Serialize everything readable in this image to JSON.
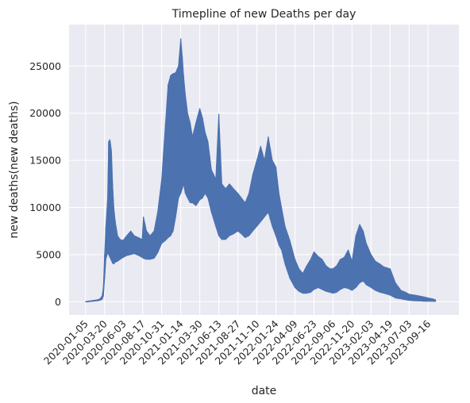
{
  "chart_data": {
    "type": "line",
    "title": "Timepline of new Deaths per day",
    "xlabel": "date",
    "ylabel": "new deaths(new deaths)",
    "x_ticks": [
      "2020-01-05",
      "2020-03-20",
      "2020-06-03",
      "2020-08-17",
      "2020-10-31",
      "2021-01-14",
      "2021-03-30",
      "2021-06-13",
      "2021-08-27",
      "2021-11-10",
      "2022-01-24",
      "2022-04-09",
      "2022-06-23",
      "2022-09-06",
      "2022-11-20",
      "2023-02-03",
      "2023-04-19",
      "2023-07-03",
      "2023-09-16"
    ],
    "y_ticks": [
      0,
      5000,
      10000,
      15000,
      20000,
      25000
    ],
    "xlim": [
      "2019-11-01",
      "2024-01-15"
    ],
    "ylim": [
      -1400,
      29400
    ],
    "grid": true,
    "background": "#eaeaf2",
    "colors": {
      "line": "#4c72b0",
      "grid": "#ffffff"
    },
    "series": [
      {
        "x": [
          "2020-01-05",
          "2020-01-20",
          "2020-02-05",
          "2020-02-20",
          "2020-03-01",
          "2020-03-10",
          "2020-03-15",
          "2020-03-20",
          "2020-03-25",
          "2020-04-01",
          "2020-04-05",
          "2020-04-10",
          "2020-04-15",
          "2020-04-20",
          "2020-04-25",
          "2020-05-01",
          "2020-05-10",
          "2020-05-20",
          "2020-06-01",
          "2020-06-15",
          "2020-07-01",
          "2020-07-15",
          "2020-08-01",
          "2020-08-15",
          "2020-08-20",
          "2020-09-01",
          "2020-09-15",
          "2020-10-01",
          "2020-10-15",
          "2020-10-31",
          "2020-11-15",
          "2020-11-25",
          "2020-12-05",
          "2020-12-15",
          "2020-12-25",
          "2021-01-05",
          "2021-01-14",
          "2021-01-20",
          "2021-01-25",
          "2021-02-01",
          "2021-02-10",
          "2021-02-20",
          "2021-03-01",
          "2021-03-15",
          "2021-03-30",
          "2021-04-10",
          "2021-04-20",
          "2021-05-01",
          "2021-05-15",
          "2021-06-01",
          "2021-06-13",
          "2021-06-25",
          "2021-07-10",
          "2021-07-25",
          "2021-08-10",
          "2021-08-27",
          "2021-09-10",
          "2021-09-25",
          "2021-10-10",
          "2021-10-25",
          "2021-11-10",
          "2021-11-25",
          "2021-12-10",
          "2021-12-25",
          "2022-01-10",
          "2022-01-24",
          "2022-02-05",
          "2022-02-15",
          "2022-03-01",
          "2022-03-20",
          "2022-04-09",
          "2022-04-25",
          "2022-05-10",
          "2022-05-25",
          "2022-06-10",
          "2022-06-23",
          "2022-07-10",
          "2022-07-25",
          "2022-08-10",
          "2022-08-25",
          "2022-09-06",
          "2022-09-20",
          "2022-10-05",
          "2022-10-20",
          "2022-11-05",
          "2022-11-20",
          "2022-12-05",
          "2022-12-20",
          "2023-01-03",
          "2023-01-15",
          "2023-02-03",
          "2023-02-20",
          "2023-03-10",
          "2023-03-25",
          "2023-04-19",
          "2023-05-10",
          "2023-06-01",
          "2023-06-20",
          "2023-07-03",
          "2023-07-25",
          "2023-08-15",
          "2023-09-01",
          "2023-09-16",
          "2023-10-05",
          "2023-10-15"
        ],
        "values": [
          0,
          50,
          100,
          150,
          200,
          400,
          1000,
          3500,
          6000,
          8000,
          15000,
          17000,
          16000,
          12000,
          9500,
          8000,
          6500,
          5500,
          5000,
          5500,
          6000,
          6500,
          6500,
          6200,
          6500,
          6000,
          6200,
          6000,
          7500,
          9000,
          11000,
          13000,
          15000,
          17000,
          19000,
          21000,
          22000,
          23000,
          21000,
          18000,
          15000,
          13000,
          12000,
          14000,
          16000,
          18000,
          17000,
          15000,
          12000,
          10000,
          9500,
          9000,
          9000,
          10000,
          10500,
          10000,
          9000,
          8500,
          9000,
          10000,
          11000,
          12000,
          13500,
          14500,
          12000,
          10500,
          9000,
          7500,
          6000,
          4000,
          2500,
          2000,
          1800,
          2200,
          2600,
          3000,
          3300,
          2900,
          2400,
          2000,
          1800,
          1900,
          2300,
          2600,
          2700,
          2500,
          3500,
          5000,
          6000,
          5000,
          3500,
          2600,
          2200,
          2000,
          1700,
          1200,
          900,
          700,
          600,
          500,
          400,
          300,
          250,
          200,
          150
        ],
        "high": [
          0,
          80,
          150,
          200,
          300,
          600,
          1500,
          5000,
          8000,
          11000,
          17000,
          17200,
          14500,
          12500,
          10000,
          8500,
          7000,
          6600,
          6500,
          7000,
          7500,
          7000,
          6800,
          6600,
          9000,
          7500,
          7000,
          7500,
          9500,
          13000,
          19000,
          23000,
          24000,
          24200,
          24300,
          25000,
          27900,
          26000,
          24000,
          22000,
          20000,
          19000,
          17500,
          19000,
          20500,
          19500,
          18000,
          17000,
          14000,
          13000,
          19900,
          12500,
          12000,
          12500,
          12000,
          11500,
          11000,
          10500,
          11500,
          13500,
          15000,
          16500,
          15000,
          17500,
          15000,
          14300,
          11500,
          10000,
          8000,
          6500,
          4500,
          3500,
          3000,
          3800,
          4500,
          5300,
          4800,
          4500,
          3800,
          3500,
          3500,
          3800,
          4500,
          4700,
          5500,
          4300,
          7000,
          8200,
          7500,
          6200,
          5000,
          4300,
          4000,
          3700,
          3500,
          2000,
          1200,
          1000,
          800,
          700,
          600,
          500,
          400,
          300,
          200
        ],
        "low": [
          0,
          20,
          50,
          100,
          150,
          250,
          600,
          2500,
          4500,
          5200,
          5000,
          4700,
          4400,
          4100,
          4000,
          4200,
          4300,
          4500,
          4700,
          4900,
          5000,
          5100,
          4900,
          4700,
          4600,
          4500,
          4500,
          4600,
          5200,
          6200,
          6500,
          6800,
          7000,
          7500,
          9000,
          11000,
          11500,
          12000,
          12500,
          11500,
          11000,
          10500,
          10500,
          10200,
          10800,
          11000,
          11500,
          11000,
          9500,
          8000,
          7000,
          6600,
          6600,
          7000,
          7200,
          7500,
          7200,
          6800,
          7000,
          7500,
          8000,
          8500,
          9000,
          9500,
          8000,
          7000,
          6000,
          5500,
          4000,
          2500,
          1500,
          1100,
          900,
          900,
          1000,
          1300,
          1500,
          1300,
          1100,
          1000,
          900,
          1000,
          1300,
          1500,
          1400,
          1200,
          1500,
          2000,
          2200,
          1800,
          1500,
          1200,
          1000,
          900,
          700,
          400,
          300,
          200,
          150,
          100,
          80,
          60,
          50,
          40,
          30
        ]
      }
    ]
  }
}
